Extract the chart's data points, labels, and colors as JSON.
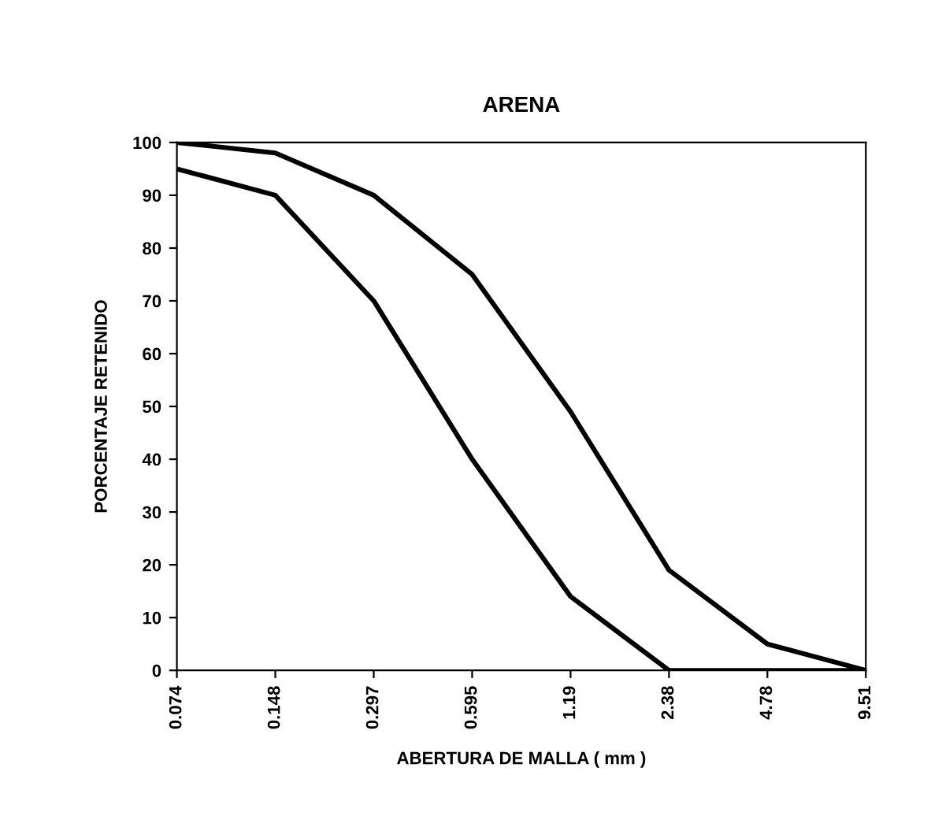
{
  "chart_data": {
    "type": "line",
    "title": "ARENA",
    "xlabel": "ABERTURA DE MALLA ( mm )",
    "ylabel": "PORCENTAJE RETENIDO",
    "categories": [
      "0.074",
      "0.148",
      "0.297",
      "0.595",
      "1.19",
      "2.38",
      "4.78",
      "9.51"
    ],
    "series": [
      {
        "color": "#000000",
        "values": [
          100,
          98,
          90,
          75,
          49,
          19,
          5,
          0
        ]
      },
      {
        "color": "#000000",
        "values": [
          95,
          90,
          70,
          40,
          14,
          0,
          0,
          0
        ]
      }
    ],
    "ylim": [
      0,
      100
    ],
    "yticks": [
      0,
      10,
      20,
      30,
      40,
      50,
      60,
      70,
      80,
      90,
      100
    ],
    "grid": false,
    "marker": "none",
    "line_style": "solid"
  }
}
